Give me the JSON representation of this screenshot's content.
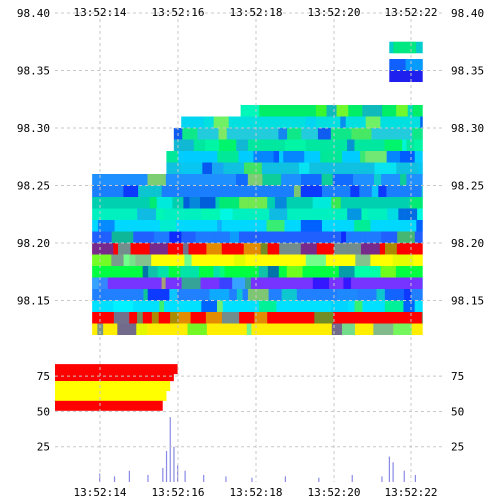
{
  "chart_data": [
    {
      "type": "heatmap",
      "title": "",
      "xlabel": "",
      "ylabel": "",
      "x_ticks": [
        "13:52:14",
        "13:52:16",
        "13:52:18",
        "13:52:20",
        "13:52:22"
      ],
      "y_ticks": [
        "98.40",
        "98.35",
        "98.30",
        "98.25",
        "98.20",
        "98.15"
      ],
      "ylim": [
        98.12,
        98.4
      ],
      "grid": true,
      "color_scale": [
        "#0000ff",
        "#00ffff",
        "#00ff00",
        "#ffff00",
        "#ff0000"
      ],
      "bands": [
        {
          "price": 98.37,
          "x_start": "13:52:22.0",
          "x_end": "13:52:22.9",
          "color": "#00cccc"
        },
        {
          "price": 98.355,
          "x_start": "13:52:22.0",
          "x_end": "13:52:22.9",
          "color": "#1060ff"
        },
        {
          "price": 98.345,
          "x_start": "13:52:22.0",
          "x_end": "13:52:22.9",
          "color": "#2020ee"
        },
        {
          "price": 98.315,
          "x_start": "13:52:18.0",
          "x_end": "13:52:22.9",
          "color": "#00ee66"
        },
        {
          "price": 98.305,
          "x_start": "13:52:16.4",
          "x_end": "13:52:22.9",
          "color": "#00e0e0"
        },
        {
          "price": 98.295,
          "x_start": "13:52:16.2",
          "x_end": "13:52:22.9",
          "color": "#22ccdd"
        },
        {
          "price": 98.285,
          "x_start": "13:52:16.2",
          "x_end": "13:52:22.9",
          "color": "#00e8a0"
        },
        {
          "price": 98.275,
          "x_start": "13:52:16.0",
          "x_end": "13:52:22.9",
          "color": "#00ccff"
        },
        {
          "price": 98.265,
          "x_start": "13:52:16.0",
          "x_end": "13:52:22.9",
          "color": "#10c0e0"
        },
        {
          "price": 98.255,
          "x_start": "13:52:14.0",
          "x_end": "13:52:22.9",
          "color": "#1e90ff"
        },
        {
          "price": 98.245,
          "x_start": "13:52:14.0",
          "x_end": "13:52:22.9",
          "color": "#1a7fff"
        },
        {
          "price": 98.235,
          "x_start": "13:52:14.0",
          "x_end": "13:52:22.9",
          "color": "#00d0b0"
        },
        {
          "price": 98.225,
          "x_start": "13:52:14.0",
          "x_end": "13:52:22.9",
          "color": "#00f0c0"
        },
        {
          "price": 98.215,
          "x_start": "13:52:14.0",
          "x_end": "13:52:22.9",
          "color": "#00d8ff"
        },
        {
          "price": 98.205,
          "x_start": "13:52:14.0",
          "x_end": "13:52:22.9",
          "color": "#2060ff"
        },
        {
          "price": 98.195,
          "x_start": "13:52:14.0",
          "x_end": "13:52:22.9",
          "color": "#ff0000"
        },
        {
          "price": 98.185,
          "x_start": "13:52:14.0",
          "x_end": "13:52:22.9",
          "color": "#ffff00"
        },
        {
          "price": 98.175,
          "x_start": "13:52:14.0",
          "x_end": "13:52:22.9",
          "color": "#00ff40"
        },
        {
          "price": 98.165,
          "x_start": "13:52:14.0",
          "x_end": "13:52:22.9",
          "color": "#7733ff"
        },
        {
          "price": 98.155,
          "x_start": "13:52:14.0",
          "x_end": "13:52:22.9",
          "color": "#2080ff"
        },
        {
          "price": 98.145,
          "x_start": "13:52:14.0",
          "x_end": "13:52:22.9",
          "color": "#00e0ff"
        },
        {
          "price": 98.135,
          "x_start": "13:52:14.0",
          "x_end": "13:52:22.9",
          "color": "#ff0000"
        },
        {
          "price": 98.125,
          "x_start": "13:52:14.0",
          "x_end": "13:52:22.9",
          "color": "#ffee00"
        }
      ]
    },
    {
      "type": "bar",
      "title": "",
      "xlabel": "",
      "ylabel": "",
      "y_ticks": [
        "75",
        "50",
        "25"
      ],
      "ylim": [
        0,
        90
      ],
      "grid": true,
      "x_ticks": [
        "13:52:14",
        "13:52:16",
        "13:52:18",
        "13:52:20",
        "13:52:22"
      ],
      "x": [
        "13:52:14.2",
        "13:52:14.6",
        "13:52:15.0",
        "13:52:15.5",
        "13:52:15.9",
        "13:52:16.0",
        "13:52:16.1",
        "13:52:16.2",
        "13:52:16.3",
        "13:52:16.5",
        "13:52:17.0",
        "13:52:17.6",
        "13:52:18.3",
        "13:52:19.2",
        "13:52:20.1",
        "13:52:21.0",
        "13:52:21.8",
        "13:52:22.0",
        "13:52:22.1",
        "13:52:22.4",
        "13:52:22.7"
      ],
      "values": [
        6,
        4,
        8,
        5,
        10,
        22,
        46,
        25,
        12,
        8,
        5,
        4,
        3,
        4,
        3,
        5,
        4,
        18,
        14,
        8,
        5
      ],
      "depth_bands": [
        {
          "level": 80,
          "x_end": "13:52:16.3",
          "color": "#ff0000"
        },
        {
          "level": 75,
          "x_end": "13:52:16.2",
          "color": "#ff0000"
        },
        {
          "level": 68,
          "x_end": "13:52:16.1",
          "color": "#ffff00"
        },
        {
          "level": 61,
          "x_end": "13:52:16.0",
          "color": "#ffff00"
        },
        {
          "level": 54,
          "x_end": "13:52:15.9",
          "color": "#ff0000"
        }
      ]
    }
  ]
}
